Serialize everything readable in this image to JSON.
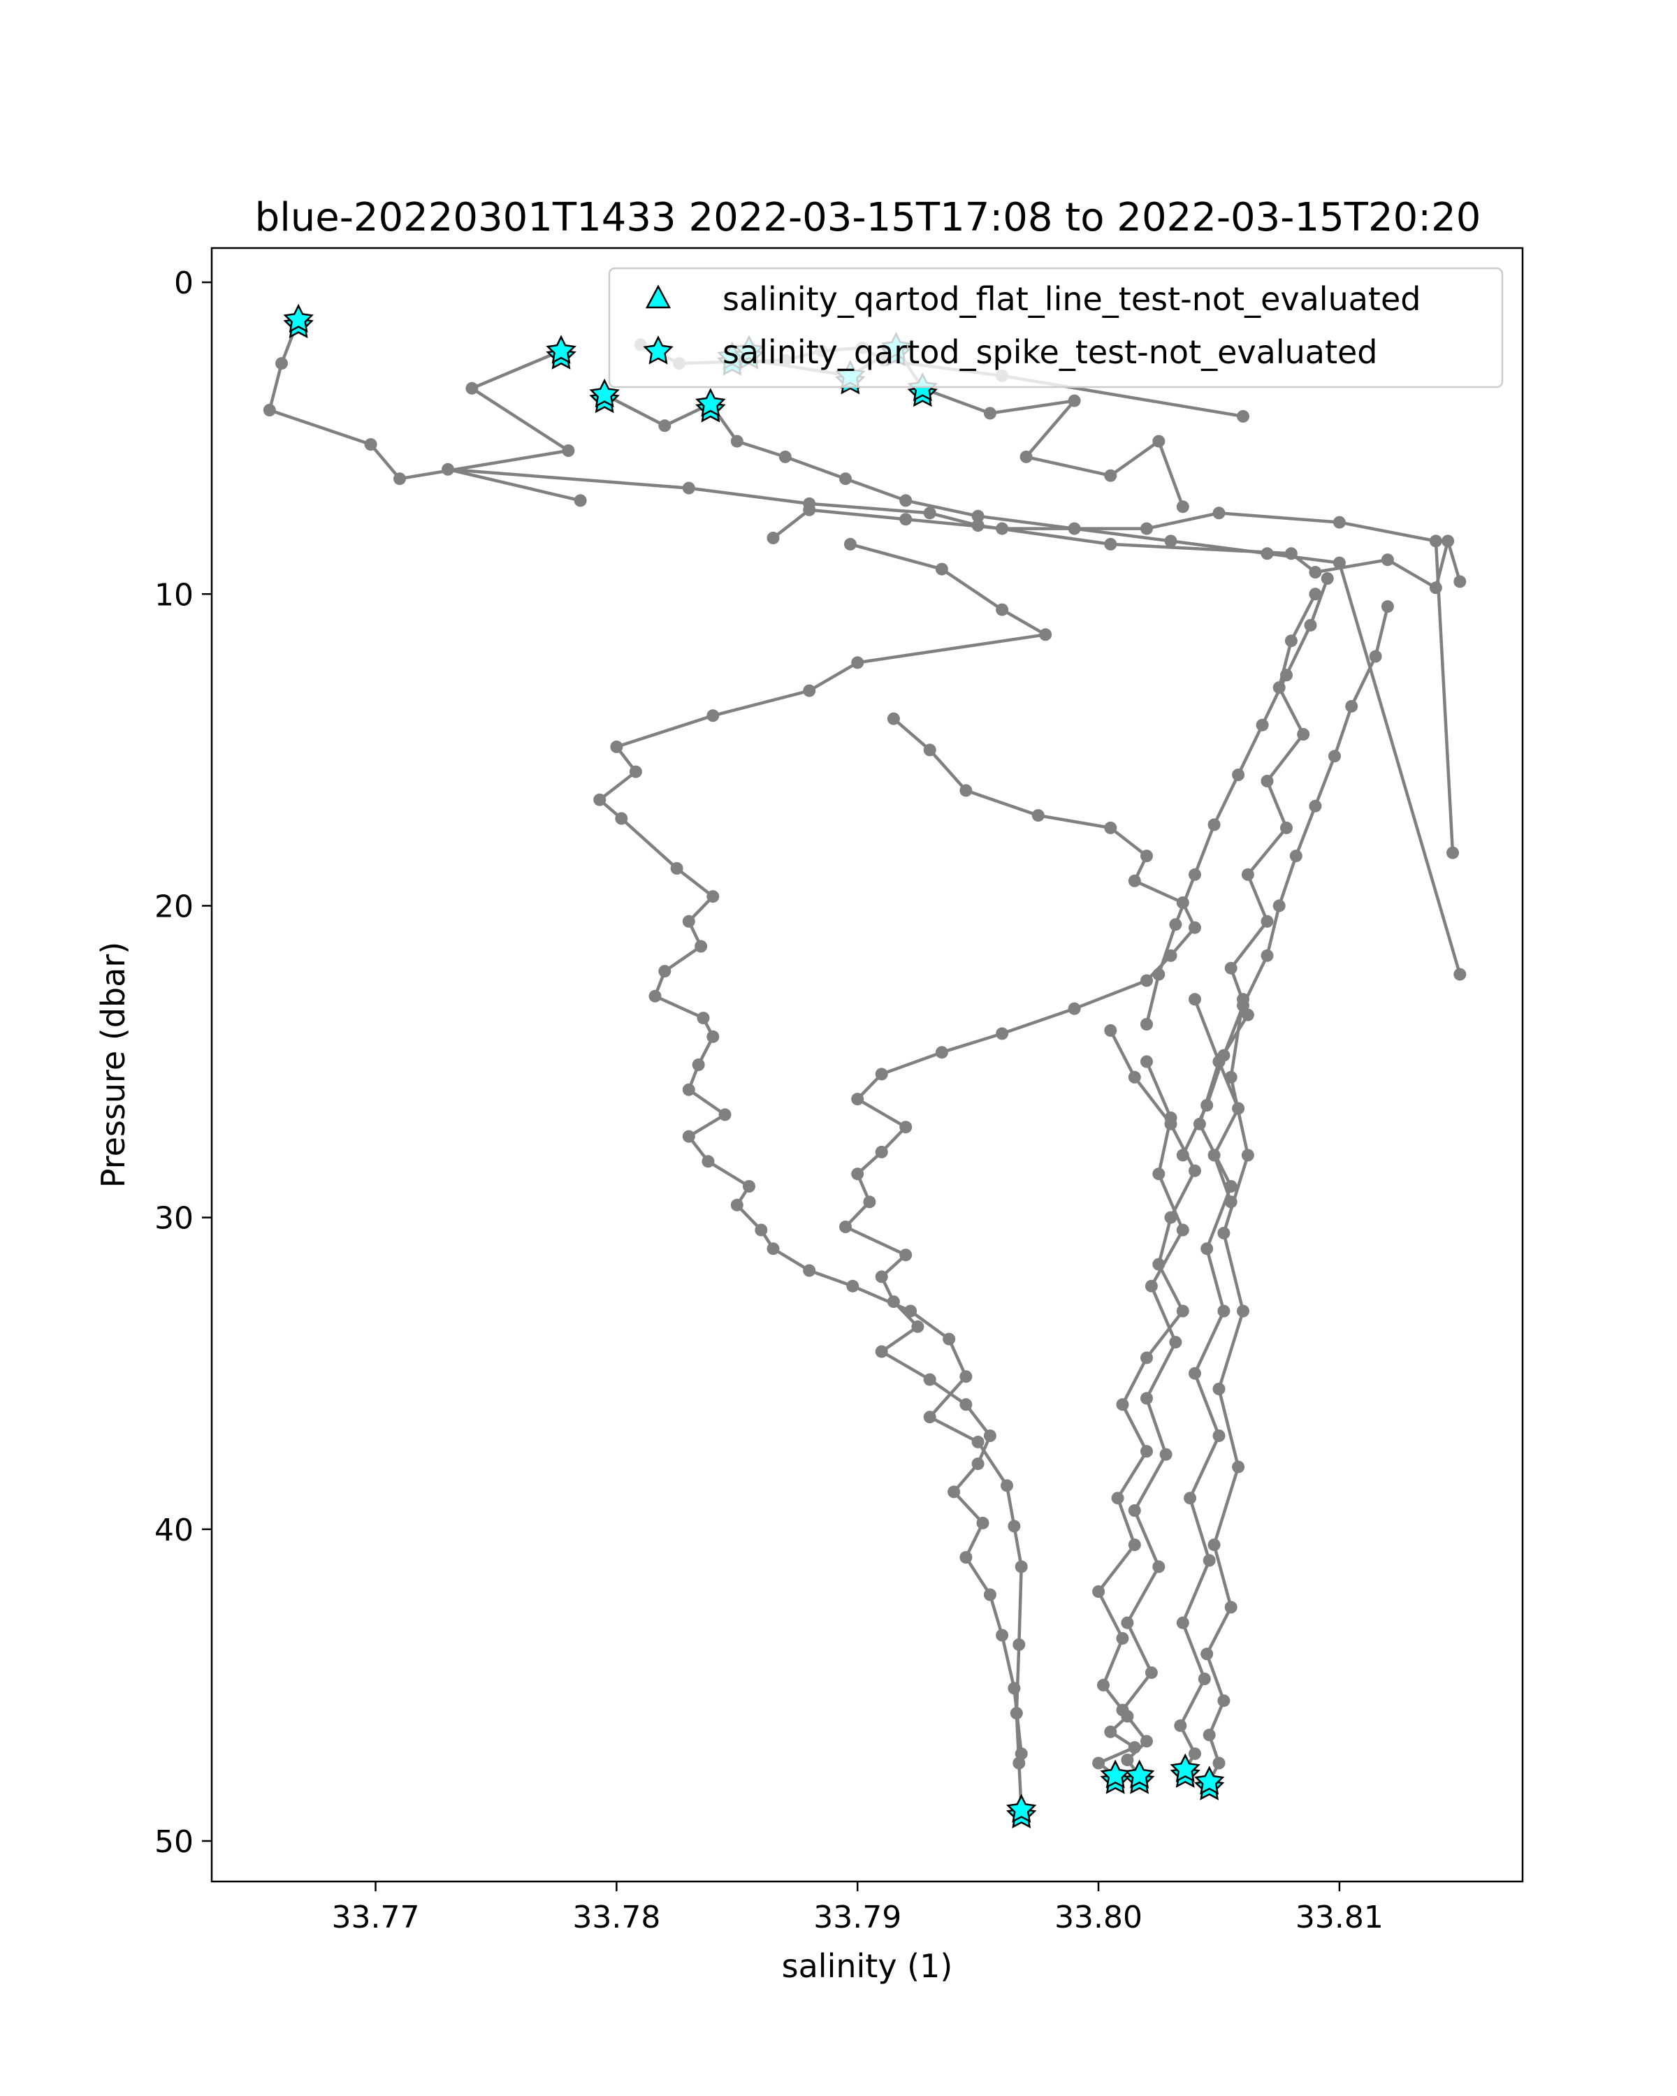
{
  "chart_data": {
    "type": "scatter",
    "title": "blue-20220301T1433 2022-03-15T17:08 to 2022-03-15T20:20",
    "xlabel": "salinity (1)",
    "ylabel": "Pressure (dbar)",
    "xlim": [
      33.7632,
      33.8176
    ],
    "ylim": [
      51.3,
      -1.1
    ],
    "y_inverted": true,
    "grid": false,
    "xticks": [
      33.77,
      33.78,
      33.79,
      33.8,
      33.81
    ],
    "xtick_labels": [
      "33.77",
      "33.78",
      "33.79",
      "33.80",
      "33.81"
    ],
    "yticks": [
      0,
      10,
      20,
      30,
      40,
      50
    ],
    "ytick_labels": [
      "0",
      "10",
      "20",
      "30",
      "40",
      "50"
    ],
    "legend_placement": "top-right",
    "colors": {
      "profile_line": "#808080",
      "marker_fill": "#00ffff",
      "marker_edge": "#000000"
    },
    "legend": [
      {
        "label": "salinity_qartod_flat_line_test-not_evaluated",
        "marker": "triangle"
      },
      {
        "label": "salinity_qartod_spike_test-not_evaluated",
        "marker": "star"
      }
    ],
    "profiles": [
      {
        "salinity": [
          33.7668,
          33.7661,
          33.7656,
          33.7698,
          33.771,
          33.778,
          33.774,
          33.7777
        ],
        "pressure": [
          1.2,
          2.6,
          4.1,
          5.2,
          6.3,
          5.4,
          3.4,
          2.2
        ]
      },
      {
        "salinity": [
          33.781,
          33.7826,
          33.787,
          33.7885,
          33.7902,
          33.7911,
          33.796,
          33.806
        ],
        "pressure": [
          2.0,
          2.6,
          2.5,
          2.2,
          2.1,
          2.5,
          3.0,
          4.3
        ]
      },
      {
        "salinity": [
          33.7785,
          33.773,
          33.783,
          33.788,
          33.793,
          33.795,
          33.8005,
          33.808,
          33.809,
          33.812,
          33.814,
          33.8145,
          33.815
        ],
        "pressure": [
          7.0,
          6.0,
          6.6,
          7.1,
          7.4,
          7.8,
          8.4,
          8.7,
          9.3,
          8.9,
          9.8,
          8.3,
          9.6
        ]
      },
      {
        "salinity": [
          33.7865,
          33.788,
          33.792,
          33.796,
          33.802,
          33.805,
          33.81,
          33.814,
          33.8147
        ],
        "pressure": [
          8.2,
          7.3,
          7.6,
          7.9,
          7.9,
          7.4,
          7.7,
          8.3,
          18.3
        ]
      },
      {
        "salinity": [
          33.7795,
          33.782,
          33.7839,
          33.785,
          33.787,
          33.7895,
          33.792,
          33.795,
          33.799,
          33.803,
          33.807,
          33.81,
          33.815
        ],
        "pressure": [
          3.6,
          4.6,
          3.9,
          5.1,
          5.6,
          6.3,
          7.0,
          7.5,
          7.9,
          8.3,
          8.7,
          9.0,
          22.2
        ]
      },
      {
        "salinity": [
          33.7848,
          33.7897,
          33.7916,
          33.7927,
          33.7955,
          33.799,
          33.797,
          33.8005,
          33.8025,
          33.8035
        ],
        "pressure": [
          2.4,
          3.0,
          2.1,
          3.4,
          4.2,
          3.8,
          5.6,
          6.2,
          5.1,
          7.2
        ]
      },
      {
        "salinity": [
          33.7897,
          33.7935,
          33.796,
          33.7978,
          33.79,
          33.788,
          33.784,
          33.78,
          33.7808,
          33.7793,
          33.7802,
          33.7825,
          33.784,
          33.783,
          33.7835,
          33.782,
          33.7816,
          33.7836,
          33.784,
          33.7834,
          33.783,
          33.7845,
          33.783,
          33.7838,
          33.7855,
          33.785,
          33.786,
          33.7865,
          33.788,
          33.7898,
          33.7922,
          33.7938,
          33.7945,
          33.793,
          33.795,
          33.7962,
          33.7965,
          33.7968,
          33.7967,
          33.7966,
          33.7967,
          33.7968
        ],
        "pressure": [
          8.4,
          9.2,
          10.5,
          11.3,
          12.2,
          13.1,
          13.9,
          14.9,
          15.7,
          16.6,
          17.2,
          18.8,
          19.7,
          20.5,
          21.3,
          22.1,
          22.9,
          23.6,
          24.2,
          25.1,
          25.9,
          26.7,
          27.4,
          28.2,
          29.0,
          29.6,
          30.4,
          31.0,
          31.7,
          32.2,
          33.0,
          33.9,
          35.1,
          36.4,
          37.2,
          38.6,
          39.9,
          41.2,
          43.7,
          45.9,
          47.5,
          49.0
        ]
      },
      {
        "salinity": [
          33.7915,
          33.793,
          33.7945,
          33.7975,
          33.8005,
          33.802,
          33.8015,
          33.8035,
          33.804,
          33.803,
          33.802,
          33.799,
          33.796,
          33.7935,
          33.791,
          33.79,
          33.792,
          33.791,
          33.79,
          33.7905,
          33.7895,
          33.792,
          33.791,
          33.7915,
          33.7925,
          33.791,
          33.793,
          33.7945,
          33.7955,
          33.795,
          33.794,
          33.7952,
          33.7945,
          33.7955,
          33.796,
          33.7965,
          33.7968
        ],
        "pressure": [
          14.0,
          15.0,
          16.3,
          17.1,
          17.5,
          18.4,
          19.2,
          19.9,
          20.7,
          21.6,
          22.4,
          23.3,
          24.1,
          24.7,
          25.4,
          26.2,
          27.1,
          27.9,
          28.6,
          29.5,
          30.3,
          31.2,
          31.9,
          32.7,
          33.5,
          34.3,
          35.2,
          36.0,
          37.0,
          37.9,
          38.8,
          39.8,
          40.9,
          42.1,
          43.4,
          45.1,
          47.2
        ]
      },
      {
        "salinity": [
          33.8005,
          33.8015,
          33.803,
          33.804,
          33.803,
          33.8025,
          33.8035,
          33.802,
          33.801,
          33.802,
          33.8008,
          33.8015,
          33.8,
          33.801,
          33.8002,
          33.8012,
          33.8005,
          33.8015,
          33.8,
          33.8007
        ],
        "pressure": [
          24.0,
          25.5,
          27.0,
          28.5,
          30.0,
          31.5,
          33.0,
          34.5,
          36.0,
          37.5,
          39.0,
          40.5,
          42.0,
          43.5,
          45.0,
          46.0,
          46.5,
          47.0,
          47.5,
          47.9
        ]
      },
      {
        "salinity": [
          33.802,
          33.803,
          33.8025,
          33.8035,
          33.8022,
          33.8032,
          33.802,
          33.8028,
          33.8015,
          33.8025,
          33.8012,
          33.8022,
          33.801,
          33.802,
          33.8012,
          33.8017
        ],
        "pressure": [
          25.0,
          26.8,
          28.6,
          30.4,
          32.2,
          34.0,
          35.8,
          37.6,
          39.4,
          41.2,
          43.0,
          44.6,
          45.8,
          46.8,
          47.4,
          47.9
        ]
      },
      {
        "salinity": [
          33.804,
          33.805,
          33.8042,
          33.8055,
          33.8045,
          33.8052,
          33.804,
          33.805,
          33.8038,
          33.8046,
          33.8035,
          33.8044,
          33.8034,
          33.804,
          33.8036
        ],
        "pressure": [
          23.0,
          25.0,
          27.0,
          29.0,
          31.0,
          33.0,
          35.0,
          37.0,
          39.0,
          41.0,
          43.0,
          44.8,
          46.3,
          47.2,
          47.7
        ]
      },
      {
        "salinity": [
          33.806,
          33.8055,
          33.8062,
          33.8052,
          33.806,
          33.805,
          33.8058,
          33.8048,
          33.8055,
          33.8045,
          33.8052,
          33.8046,
          33.805,
          33.8046
        ],
        "pressure": [
          23.0,
          25.5,
          28.0,
          30.5,
          33.0,
          35.5,
          38.0,
          40.5,
          42.5,
          44.0,
          45.5,
          46.6,
          47.5,
          48.1
        ]
      },
      {
        "salinity": [
          33.809,
          33.808,
          33.8075,
          33.8085,
          33.807,
          33.8078,
          33.8062,
          33.807,
          33.8055,
          33.8062,
          33.805,
          33.8058,
          33.8048,
          33.8055
        ],
        "pressure": [
          10.0,
          11.5,
          13.0,
          14.5,
          16.0,
          17.5,
          19.0,
          20.5,
          22.0,
          23.5,
          25.0,
          26.5,
          28.0,
          29.5
        ]
      },
      {
        "salinity": [
          33.812,
          33.8115,
          33.8105,
          33.8098,
          33.809,
          33.8082,
          33.8075,
          33.807,
          33.806,
          33.8052,
          33.8045,
          33.8035
        ],
        "pressure": [
          10.4,
          12.0,
          13.6,
          15.2,
          16.8,
          18.4,
          20.0,
          21.6,
          23.2,
          24.8,
          26.4,
          28.0
        ]
      },
      {
        "salinity": [
          33.8095,
          33.8088,
          33.8078,
          33.8068,
          33.8058,
          33.8048,
          33.804,
          33.8032,
          33.8025,
          33.802
        ],
        "pressure": [
          9.5,
          11.0,
          12.6,
          14.2,
          15.8,
          17.4,
          19.0,
          20.6,
          22.2,
          23.8
        ]
      }
    ],
    "flagged_points": [
      {
        "salinity": 33.7668,
        "pressure": 1.2
      },
      {
        "salinity": 33.7777,
        "pressure": 2.2
      },
      {
        "salinity": 33.7795,
        "pressure": 3.6
      },
      {
        "salinity": 33.7839,
        "pressure": 3.9
      },
      {
        "salinity": 33.7848,
        "pressure": 2.4
      },
      {
        "salinity": 33.7855,
        "pressure": 2.2
      },
      {
        "salinity": 33.7897,
        "pressure": 3.0
      },
      {
        "salinity": 33.7916,
        "pressure": 2.1
      },
      {
        "salinity": 33.7927,
        "pressure": 3.4
      },
      {
        "salinity": 33.7968,
        "pressure": 49.0
      },
      {
        "salinity": 33.8007,
        "pressure": 47.9
      },
      {
        "salinity": 33.8017,
        "pressure": 47.9
      },
      {
        "salinity": 33.8036,
        "pressure": 47.7
      },
      {
        "salinity": 33.8046,
        "pressure": 48.1
      }
    ]
  }
}
